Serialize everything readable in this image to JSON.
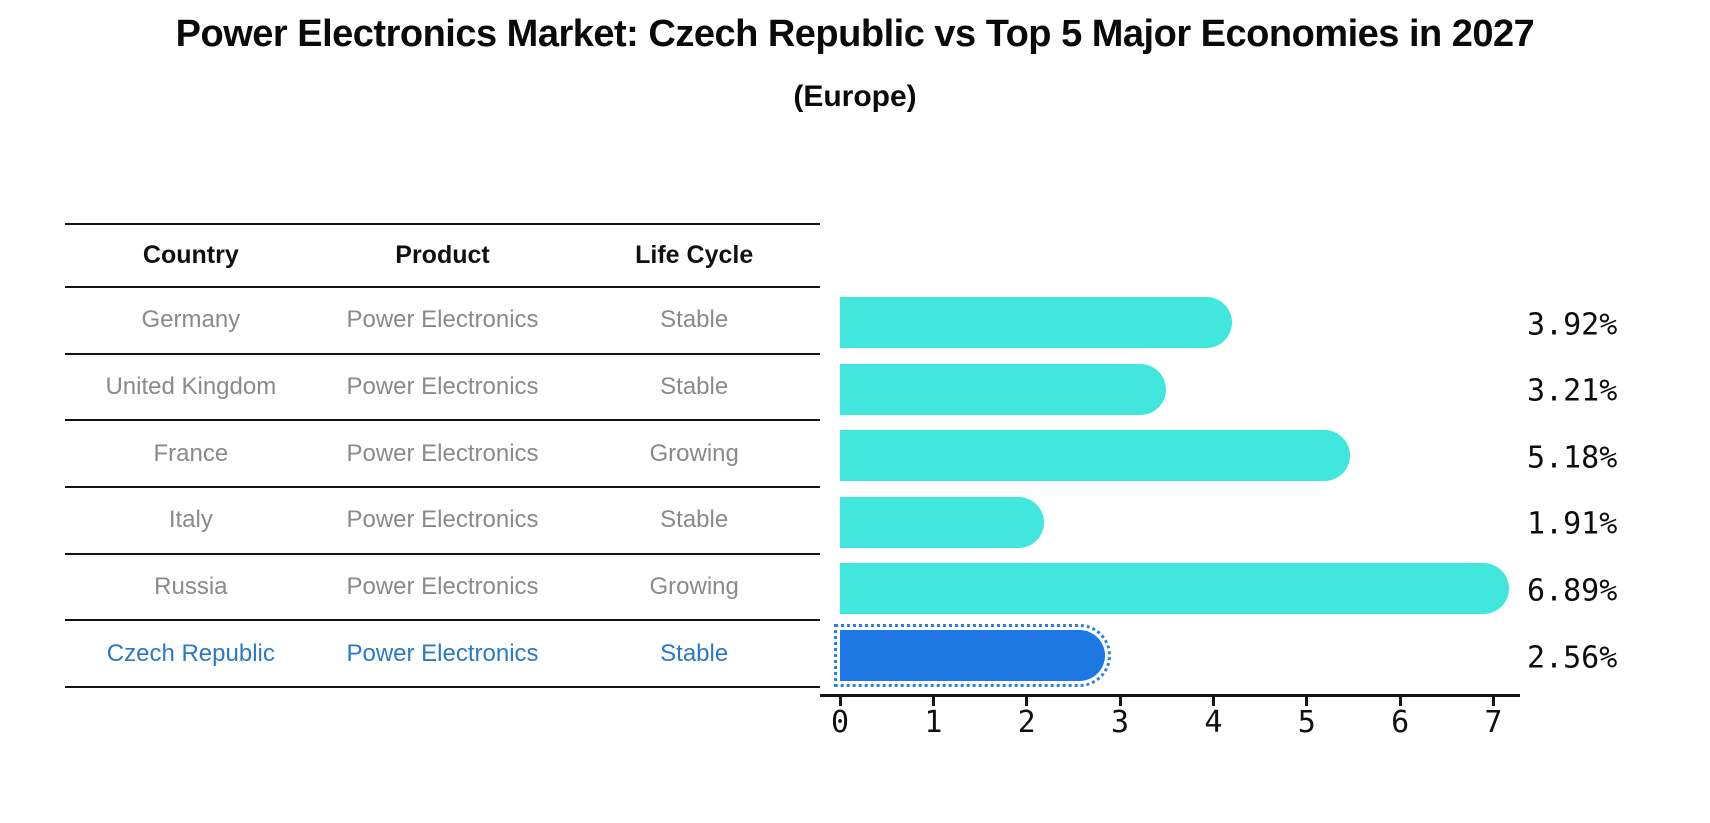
{
  "header": {
    "title": "Power Electronics Market: Czech Republic vs Top 5 Major Economies in 2027",
    "subtitle": "(Europe)"
  },
  "table": {
    "columns": [
      "Country",
      "Product",
      "Life Cycle"
    ],
    "rows": [
      {
        "country": "Germany",
        "product": "Power Electronics",
        "life_cycle": "Stable",
        "highlight": false
      },
      {
        "country": "United Kingdom",
        "product": "Power Electronics",
        "life_cycle": "Stable",
        "highlight": false
      },
      {
        "country": "France",
        "product": "Power Electronics",
        "life_cycle": "Growing",
        "highlight": false
      },
      {
        "country": "Italy",
        "product": "Power Electronics",
        "life_cycle": "Stable",
        "highlight": false
      },
      {
        "country": "Russia",
        "product": "Power Electronics",
        "life_cycle": "Growing",
        "highlight": false
      },
      {
        "country": "Czech Republic",
        "product": "Power Electronics",
        "life_cycle": "Stable",
        "highlight": true
      }
    ]
  },
  "chart_data": {
    "type": "bar",
    "orientation": "horizontal",
    "title": "Power Electronics Market: Czech Republic vs Top 5 Major Economies in 2027",
    "subtitle": "(Europe)",
    "categories": [
      "Germany",
      "United Kingdom",
      "France",
      "Italy",
      "Russia",
      "Czech Republic"
    ],
    "values": [
      3.92,
      3.21,
      5.18,
      1.91,
      6.89,
      2.56
    ],
    "value_labels": [
      "3.92%",
      "3.21%",
      "5.18%",
      "1.91%",
      "6.89%",
      "2.56%"
    ],
    "highlight_index": 5,
    "xticks": [
      "0",
      "1",
      "2",
      "3",
      "4",
      "5",
      "6",
      "7"
    ],
    "xlim": [
      0,
      7.3
    ],
    "grid": false,
    "legend": false,
    "xlabel": "",
    "ylabel": ""
  },
  "colors": {
    "bar": "#41e6dc",
    "highlight_bar": "#1e78e3",
    "highlight_text": "#2979c9",
    "row_text": "#8a8a8a",
    "axis": "#141414"
  }
}
